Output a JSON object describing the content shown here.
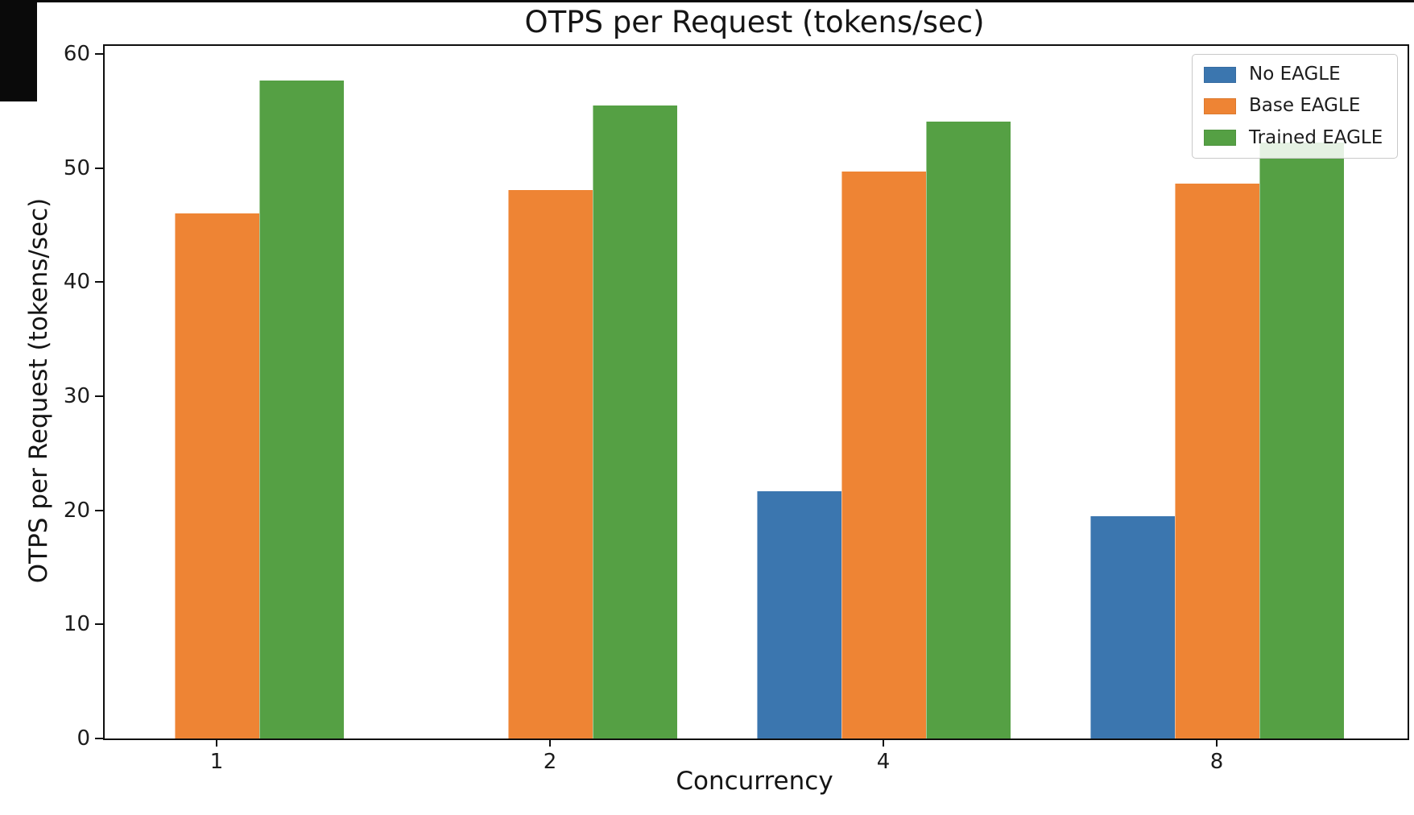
{
  "title": "OTPS per Request (tokens/sec)",
  "chart_data": {
    "type": "bar",
    "title": "OTPS per Request (tokens/sec)",
    "xlabel": "Concurrency",
    "ylabel": "OTPS per Request (tokens/sec)",
    "categories": [
      "1",
      "2",
      "4",
      "8"
    ],
    "series": [
      {
        "name": "No EAGLE",
        "color": "#3b76af",
        "values": [
          0,
          0,
          21.7,
          19.5
        ]
      },
      {
        "name": "Base EAGLE",
        "color": "#ee8434",
        "values": [
          46.0,
          48.1,
          49.7,
          48.6
        ]
      },
      {
        "name": "Trained EAGLE",
        "color": "#55a044",
        "values": [
          57.7,
          55.5,
          54.1,
          52.2
        ]
      }
    ],
    "ylim": [
      0,
      60.7
    ],
    "yticks": [
      0,
      10,
      20,
      30,
      40,
      50,
      60
    ],
    "grid": false,
    "legend_position": "upper right",
    "legend_labels": [
      "No EAGLE",
      "Base EAGLE",
      "Trained EAGLE"
    ]
  }
}
